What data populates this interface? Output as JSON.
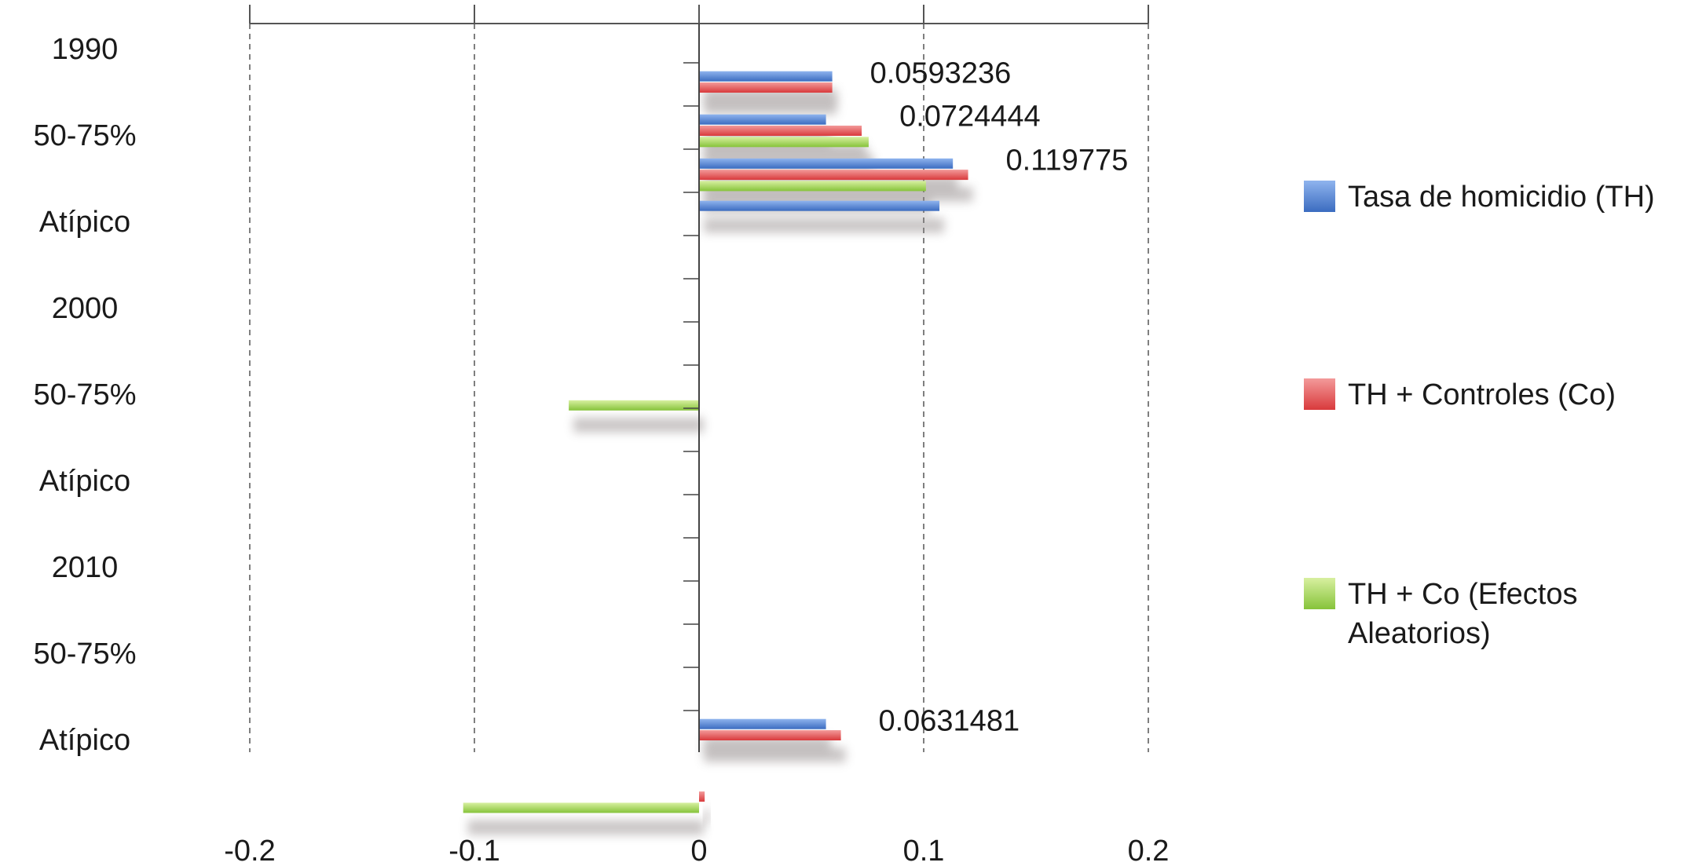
{
  "chart_data": {
    "type": "bar",
    "orientation": "horizontal",
    "title": "",
    "xlabel": "",
    "ylabel": "",
    "xlim": [
      -0.2,
      0.2
    ],
    "x_ticks": [
      "-0.2",
      "-0.1",
      "0",
      "0.1",
      "0.2"
    ],
    "grid": "vertical dashed",
    "category_labels": [
      "1990",
      "50-75%",
      "Atípico",
      "2000",
      "50-75%",
      "Atípico",
      "2010",
      "50-75%",
      "Atípico"
    ],
    "groups": [
      {
        "label": "1990"
      },
      {
        "label": "50-75%"
      },
      {
        "label": "Atípico"
      },
      {
        "label": "2000"
      },
      {
        "label": "50-75%"
      },
      {
        "label": "Atípico"
      },
      {
        "label": "2010"
      },
      {
        "label": "50-75%"
      },
      {
        "label": "Atípico"
      }
    ],
    "series": [
      {
        "name": "Tasa de homicidio (TH)",
        "color": "#4a7fd0"
      },
      {
        "name": "TH + Controles (Co)",
        "color": "#e8474a"
      },
      {
        "name": "TH + Co (Efectos Aleatorios)",
        "color": "#9cd14a"
      }
    ],
    "bars": [
      {
        "series": 0,
        "row": 0.32,
        "value": 0.0593
      },
      {
        "series": 1,
        "row": 0.45,
        "value": 0.0593
      },
      {
        "series": 0,
        "row": 0.82,
        "value": 0.0565
      },
      {
        "series": 1,
        "row": 0.95,
        "value": 0.0724
      },
      {
        "series": 2,
        "row": 1.08,
        "value": 0.0755
      },
      {
        "series": 0,
        "row": 1.33,
        "value": 0.113
      },
      {
        "series": 1,
        "row": 1.46,
        "value": 0.119775
      },
      {
        "series": 2,
        "row": 1.59,
        "value": 0.101
      },
      {
        "series": 0,
        "row": 1.82,
        "value": 0.107
      },
      {
        "series": 2,
        "row": 4.13,
        "value": -0.058
      },
      {
        "series": 0,
        "row": 7.82,
        "value": 0.0565
      },
      {
        "series": 1,
        "row": 7.95,
        "value": 0.0631481
      },
      {
        "series": 1,
        "row": 8.66,
        "value": 0.0025
      },
      {
        "series": 2,
        "row": 8.79,
        "value": -0.105
      }
    ],
    "data_labels": [
      {
        "text": "0.0593236",
        "row": 0.45,
        "at": 0.0593
      },
      {
        "text": "0.0724444",
        "row": 0.95,
        "at": 0.0724
      },
      {
        "text": "0.119775",
        "row": 1.46,
        "at": 0.119775
      },
      {
        "text": "0.0631481",
        "row": 7.95,
        "at": 0.0631
      }
    ],
    "legend_position": "right"
  }
}
